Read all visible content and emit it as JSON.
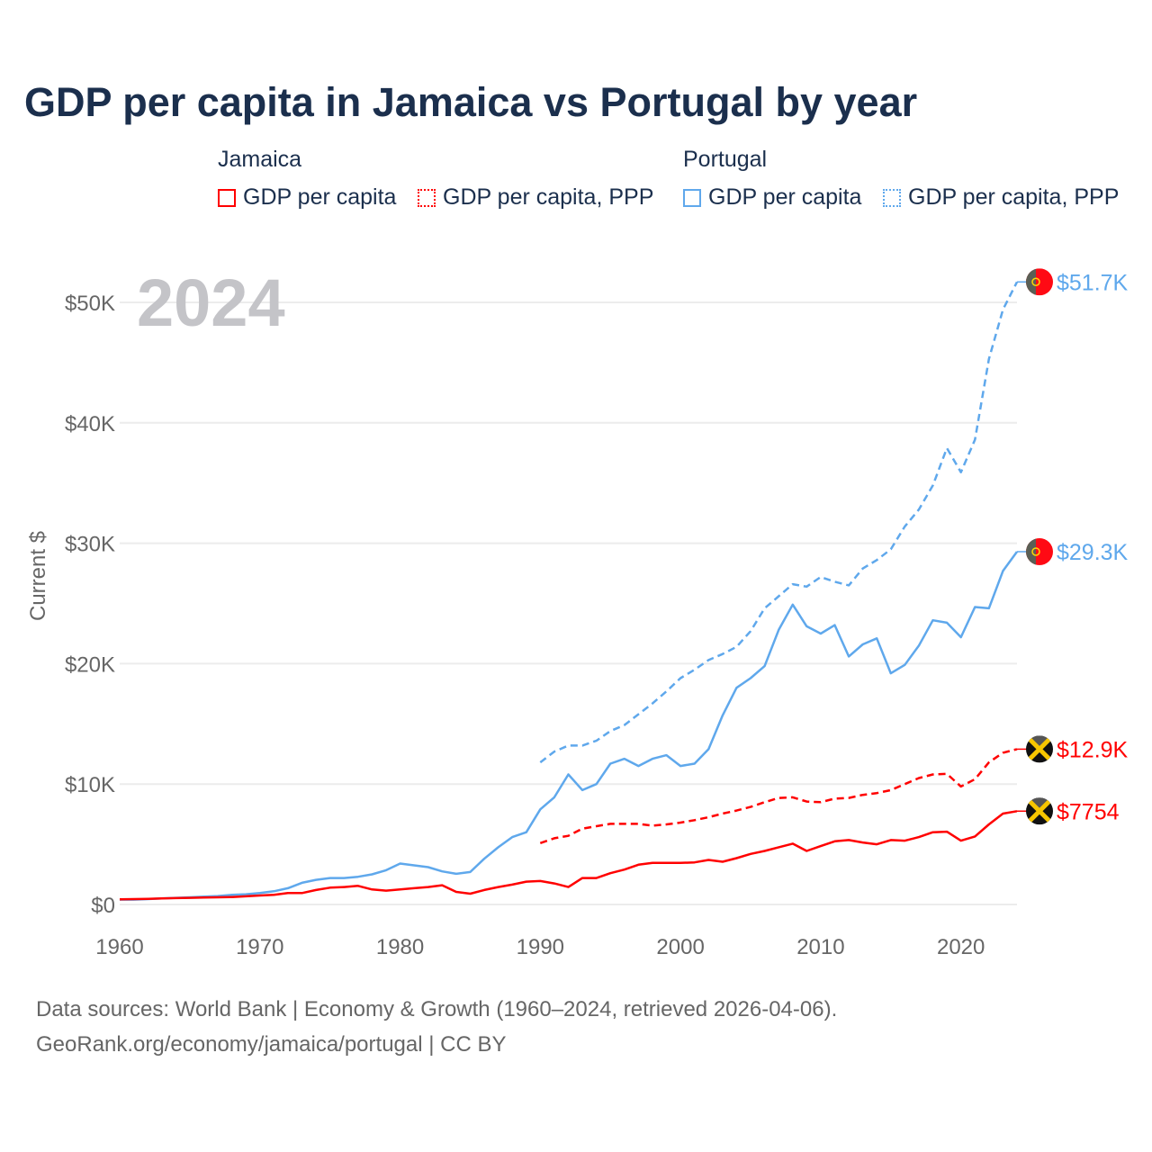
{
  "chart_data": {
    "type": "line",
    "title": "GDP per capita in Jamaica vs Portugal by year",
    "ylabel": "Current $",
    "xlabel": "",
    "year_label": "2024",
    "xlim": [
      1960,
      2024
    ],
    "ylim": [
      0,
      52000
    ],
    "x_ticks": [
      "1960",
      "1970",
      "1980",
      "1990",
      "2000",
      "2010",
      "2020"
    ],
    "y_ticks": [
      {
        "value": 0,
        "label": "$0"
      },
      {
        "value": 10000,
        "label": "$10K"
      },
      {
        "value": 20000,
        "label": "$20K"
      },
      {
        "value": 30000,
        "label": "$30K"
      },
      {
        "value": 40000,
        "label": "$40K"
      },
      {
        "value": 50000,
        "label": "$50K"
      }
    ],
    "grid": true,
    "legend": {
      "placement": "top",
      "groups": [
        {
          "name": "Jamaica",
          "items": [
            "GDP per capita",
            "GDP per capita, PPP"
          ],
          "color": "#ff0000"
        },
        {
          "name": "Portugal",
          "items": [
            "GDP per capita",
            "GDP per capita, PPP"
          ],
          "color": "#5fa8ec"
        }
      ]
    },
    "series": [
      {
        "name": "Portugal GDP per capita, PPP",
        "country": "Portugal",
        "color": "#5fa8ec",
        "dashed": true,
        "start": 1990,
        "end_label": "$51.7K",
        "values": [
          11800,
          12700,
          13200,
          13200,
          13600,
          14400,
          14900,
          15800,
          16700,
          17700,
          18800,
          19500,
          20300,
          20800,
          21400,
          22700,
          24600,
          25600,
          26600,
          26400,
          27200,
          26800,
          26500,
          27900,
          28600,
          29500,
          31400,
          32800,
          34800,
          37900,
          35900,
          38600,
          45300,
          49400,
          51700
        ]
      },
      {
        "name": "Portugal GDP per capita",
        "country": "Portugal",
        "color": "#5fa8ec",
        "dashed": false,
        "start": 1960,
        "end_label": "$29.3K",
        "values": [
          400,
          400,
          450,
          500,
          550,
          600,
          650,
          700,
          800,
          850,
          950,
          1100,
          1350,
          1800,
          2050,
          2200,
          2200,
          2300,
          2500,
          2850,
          3400,
          3250,
          3100,
          2750,
          2550,
          2700,
          3800,
          4750,
          5600,
          6000,
          7900,
          8900,
          10800,
          9500,
          10000,
          11700,
          12100,
          11500,
          12100,
          12400,
          11500,
          11700,
          12900,
          15700,
          18000,
          18800,
          19800,
          22800,
          24900,
          23100,
          22500,
          23200,
          20600,
          21600,
          22100,
          19200,
          19900,
          21500,
          23600,
          23400,
          22200,
          24700,
          24600,
          27700,
          29300
        ]
      },
      {
        "name": "Jamaica GDP per capita, PPP",
        "country": "Jamaica",
        "color": "#ff0000",
        "dashed": true,
        "start": 1990,
        "end_label": "$12.9K",
        "values": [
          5100,
          5500,
          5700,
          6300,
          6500,
          6700,
          6700,
          6700,
          6550,
          6650,
          6800,
          7000,
          7250,
          7550,
          7800,
          8100,
          8500,
          8850,
          8900,
          8550,
          8500,
          8800,
          8850,
          9100,
          9250,
          9500,
          10000,
          10500,
          10800,
          10850,
          9800,
          10400,
          11800,
          12600,
          12900
        ]
      },
      {
        "name": "Jamaica GDP per capita",
        "country": "Jamaica",
        "color": "#ff0000",
        "dashed": false,
        "start": 1960,
        "end_label": "$7754",
        "values": [
          430,
          450,
          470,
          500,
          530,
          550,
          580,
          600,
          620,
          680,
          750,
          800,
          950,
          950,
          1200,
          1400,
          1450,
          1550,
          1250,
          1150,
          1250,
          1350,
          1450,
          1600,
          1050,
          900,
          1200,
          1450,
          1650,
          1900,
          1950,
          1750,
          1450,
          2200,
          2200,
          2600,
          2900,
          3300,
          3450,
          3450,
          3450,
          3500,
          3700,
          3550,
          3850,
          4200,
          4450,
          4750,
          5050,
          4450,
          4850,
          5250,
          5350,
          5150,
          5000,
          5350,
          5300,
          5600,
          6000,
          6050,
          5300,
          5650,
          6650,
          7550,
          7754
        ]
      }
    ]
  },
  "footer": {
    "line1": "Data sources: World Bank | Economy & Growth (1960–2024, retrieved 2026-04-06).",
    "line2": "GeoRank.org/economy/jamaica/portugal | CC BY"
  }
}
